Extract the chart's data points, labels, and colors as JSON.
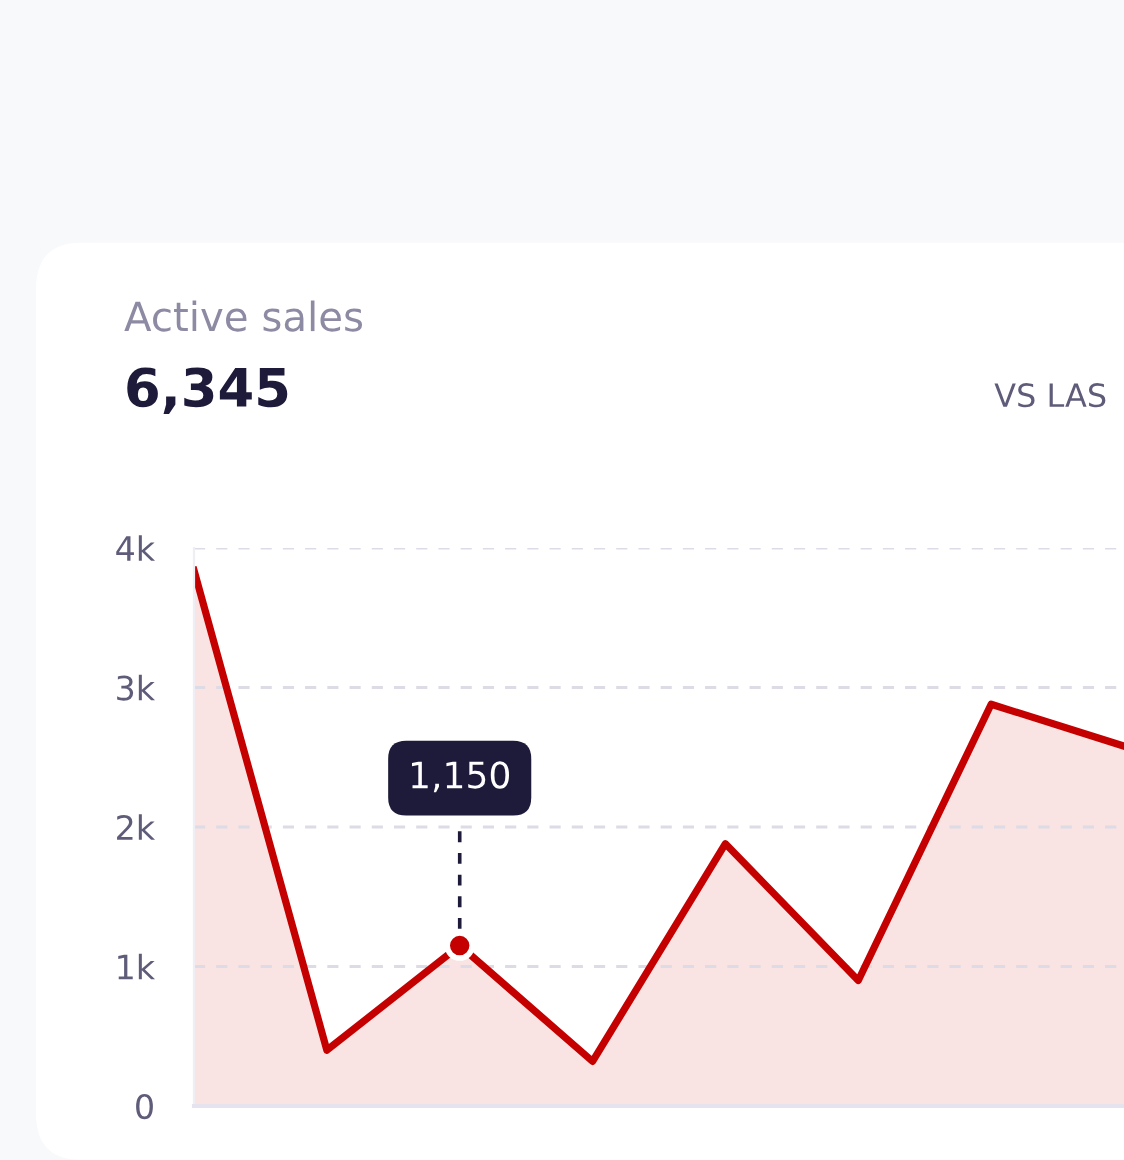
{
  "chart_data": {
    "type": "area",
    "title": "Active sales",
    "subtitle": "6,345",
    "annotations": [
      "VS LAS"
    ],
    "categories": [
      null,
      null,
      null,
      null,
      null,
      null,
      null,
      null
    ],
    "series": [
      {
        "color": "#c40000",
        "values": [
          3840,
          400,
          1150,
          320,
          1880,
          900,
          2880,
          2580
        ],
        "value_labels": [
          null,
          null,
          "1,150",
          null,
          null,
          null,
          null,
          null
        ]
      }
    ],
    "ylim": [
      0,
      4000
    ],
    "yticks": [
      0,
      {
        "value": 1000,
        "label": "1k"
      },
      {
        "value": 2000,
        "label": "2k"
      },
      {
        "value": 3000,
        "label": "3k"
      },
      {
        "value": 4000,
        "label": "4k"
      }
    ],
    "grid": "y",
    "marker": "none",
    "line_style": "solid"
  }
}
